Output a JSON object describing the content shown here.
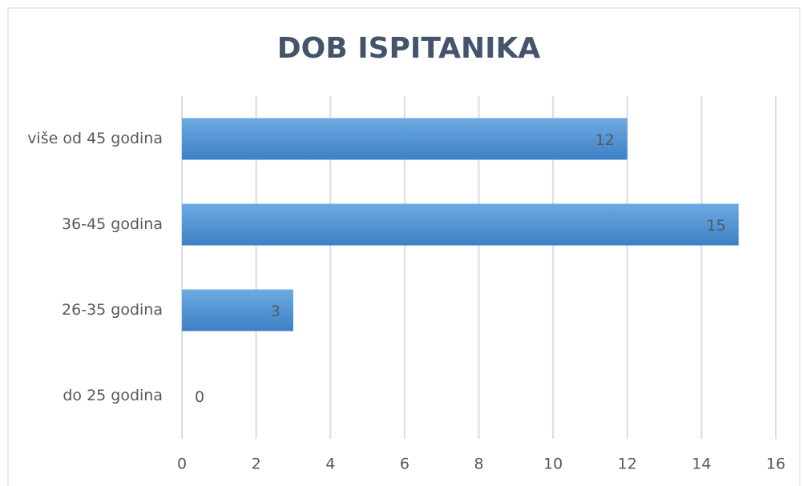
{
  "chart_data": {
    "type": "hbar",
    "title": "DOB ISPITANIKA",
    "categories": [
      "do 25 godina",
      "26-35 godina",
      "36-45 godina",
      "više od 45 godina"
    ],
    "values": [
      0,
      3,
      15,
      12
    ],
    "color": "#5b9bd5",
    "xlim": [
      0,
      16
    ],
    "xticks": [
      0,
      2,
      4,
      6,
      8,
      10,
      12,
      14,
      16
    ],
    "grid": true
  }
}
